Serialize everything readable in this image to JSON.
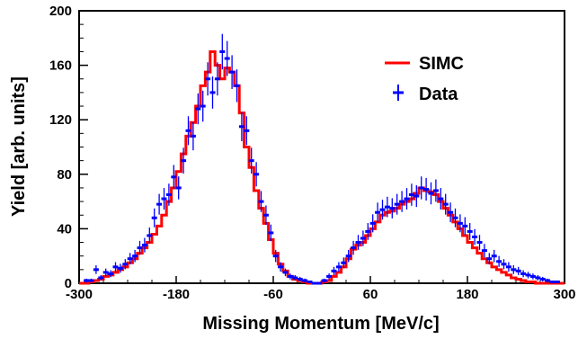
{
  "chart_data": {
    "type": "histogram",
    "title": "",
    "xlabel": "Missing Momentum [MeV/c]",
    "ylabel": "Yield [arb. units]",
    "xlim": [
      -300,
      300
    ],
    "ylim": [
      0,
      200
    ],
    "x_ticks": [
      -300,
      -180,
      -60,
      60,
      180,
      300
    ],
    "y_ticks": [
      0,
      40,
      80,
      120,
      160,
      200
    ],
    "legend_position": "top-right",
    "colors": {
      "simc": "#ff0000",
      "data": "#0000ff"
    },
    "series": [
      {
        "name": "SIMC",
        "style": "step-line",
        "bin_width": 6,
        "x": [
          -297,
          -291,
          -285,
          -279,
          -273,
          -267,
          -261,
          -255,
          -249,
          -243,
          -237,
          -231,
          -225,
          -219,
          -213,
          -207,
          -201,
          -195,
          -189,
          -183,
          -177,
          -171,
          -165,
          -159,
          -153,
          -147,
          -141,
          -135,
          -129,
          -123,
          -117,
          -111,
          -105,
          -99,
          -93,
          -87,
          -81,
          -75,
          -69,
          -63,
          -57,
          -51,
          -45,
          -39,
          -33,
          -27,
          -21,
          -15,
          -9,
          -3,
          3,
          9,
          15,
          21,
          27,
          33,
          39,
          45,
          51,
          57,
          63,
          69,
          75,
          81,
          87,
          93,
          99,
          105,
          111,
          117,
          123,
          129,
          135,
          141,
          147,
          153,
          159,
          165,
          171,
          177,
          183,
          189,
          195,
          201,
          207,
          213,
          219,
          225,
          231,
          237,
          243,
          249,
          255,
          261,
          267,
          273,
          279,
          285,
          291,
          297
        ],
        "y": [
          0,
          0,
          1,
          2,
          3,
          5,
          6,
          8,
          10,
          12,
          15,
          18,
          22,
          26,
          30,
          36,
          42,
          50,
          60,
          70,
          82,
          95,
          108,
          118,
          130,
          145,
          155,
          170,
          160,
          150,
          158,
          155,
          145,
          125,
          100,
          85,
          68,
          55,
          44,
          32,
          22,
          14,
          9,
          5,
          3,
          2,
          1,
          0,
          0,
          0,
          1,
          2,
          5,
          8,
          12,
          18,
          25,
          28,
          30,
          35,
          40,
          45,
          50,
          52,
          53,
          55,
          58,
          60,
          62,
          66,
          70,
          68,
          67,
          65,
          60,
          55,
          50,
          45,
          40,
          35,
          30,
          26,
          22,
          18,
          15,
          12,
          10,
          8,
          6,
          4,
          3,
          2,
          1,
          1,
          0,
          0,
          0,
          0,
          0,
          0
        ]
      },
      {
        "name": "Data",
        "style": "points-with-errors",
        "x": [
          -291,
          -285,
          -279,
          -273,
          -267,
          -261,
          -255,
          -249,
          -243,
          -237,
          -231,
          -225,
          -219,
          -213,
          -207,
          -201,
          -195,
          -189,
          -183,
          -177,
          -171,
          -165,
          -159,
          -153,
          -147,
          -141,
          -135,
          -129,
          -123,
          -117,
          -111,
          -105,
          -99,
          -93,
          -87,
          -81,
          -75,
          -69,
          -63,
          -57,
          -51,
          -45,
          -39,
          -33,
          -27,
          -21,
          -15,
          -9,
          -3,
          3,
          9,
          15,
          21,
          27,
          33,
          39,
          45,
          51,
          57,
          63,
          69,
          75,
          81,
          87,
          93,
          99,
          105,
          111,
          117,
          123,
          129,
          135,
          141,
          147,
          153,
          159,
          165,
          171,
          177,
          183,
          189,
          195,
          201,
          207,
          213,
          219,
          225,
          231,
          237,
          243,
          249,
          255,
          261,
          267,
          273,
          279,
          285,
          291
        ],
        "y": [
          2,
          2,
          10,
          4,
          8,
          7,
          12,
          11,
          14,
          18,
          20,
          26,
          28,
          35,
          48,
          58,
          62,
          65,
          78,
          70,
          90,
          112,
          108,
          128,
          130,
          150,
          140,
          150,
          170,
          165,
          155,
          145,
          115,
          112,
          90,
          80,
          60,
          50,
          37,
          20,
          12,
          8,
          5,
          4,
          3,
          2,
          1,
          0,
          0,
          2,
          5,
          9,
          12,
          15,
          20,
          26,
          30,
          33,
          38,
          44,
          52,
          54,
          56,
          55,
          58,
          60,
          62,
          65,
          64,
          70,
          69,
          66,
          68,
          62,
          58,
          52,
          48,
          44,
          42,
          38,
          34,
          30,
          24,
          18,
          20,
          16,
          14,
          12,
          10,
          9,
          7,
          6,
          5,
          4,
          3,
          2,
          1,
          1
        ],
        "errors": [
          1.4,
          1.4,
          3.2,
          2,
          2.8,
          2.6,
          3.5,
          3.3,
          3.7,
          4.2,
          4.5,
          5.1,
          5.3,
          5.9,
          6.9,
          7.6,
          7.9,
          8.1,
          8.8,
          8.4,
          9.5,
          10.6,
          10.4,
          11.3,
          11.4,
          12.2,
          11.8,
          12.2,
          13,
          12.8,
          12.4,
          12,
          10.7,
          10.6,
          9.5,
          8.9,
          7.7,
          7.1,
          6.1,
          4.5,
          3.5,
          2.8,
          2.2,
          2,
          1.7,
          1.4,
          1,
          0.5,
          0.5,
          1.4,
          2.2,
          3,
          3.5,
          3.9,
          4.5,
          5.1,
          5.5,
          5.7,
          6.2,
          6.6,
          7.2,
          7.3,
          7.5,
          7.4,
          7.6,
          7.7,
          7.9,
          8.1,
          8,
          8.4,
          8.3,
          8.1,
          8.2,
          7.9,
          7.6,
          7.2,
          6.9,
          6.6,
          6.5,
          6.2,
          5.8,
          5.5,
          4.9,
          4.2,
          4.5,
          4,
          3.7,
          3.5,
          3.2,
          3,
          2.6,
          2.4,
          2.2,
          2,
          1.7,
          1.4,
          1,
          1
        ]
      }
    ]
  }
}
